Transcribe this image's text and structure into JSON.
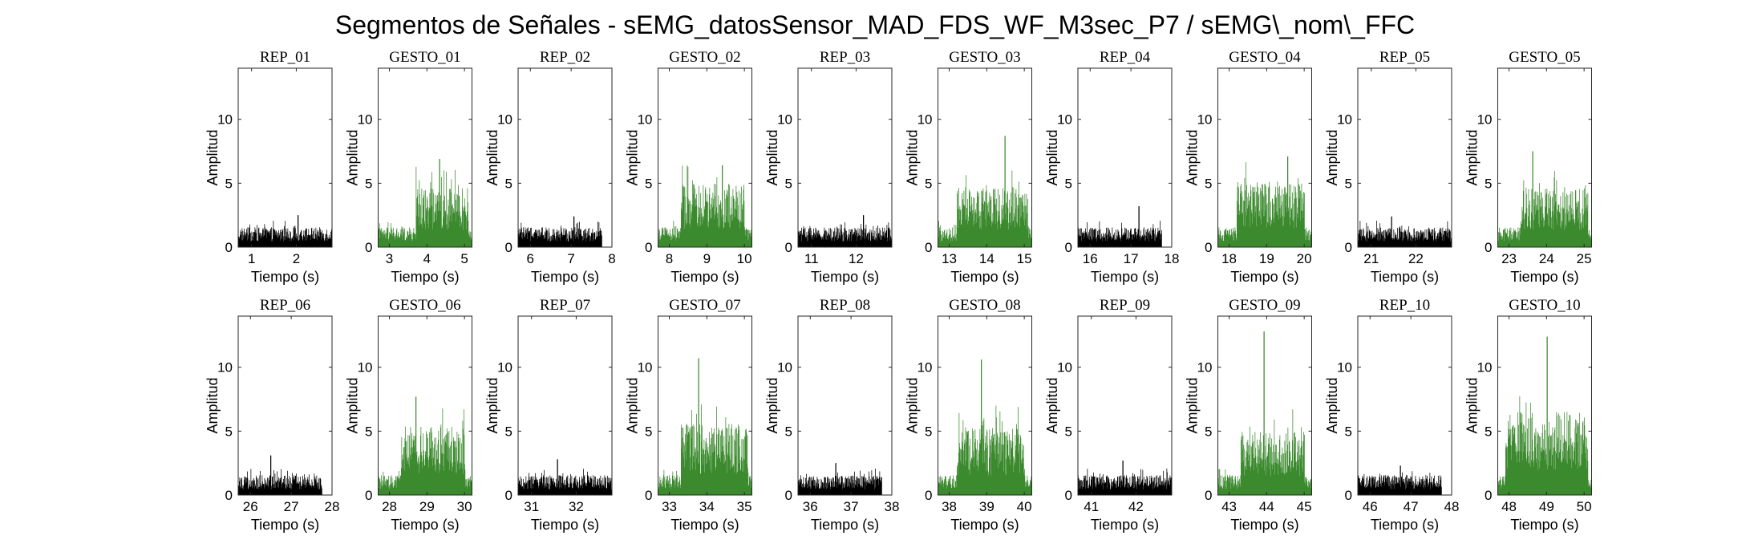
{
  "figure": {
    "suptitle": "Segmentos de Señales - sEMG_datosSensor_MAD_FDS_WF_M3sec_P7 / sEMG\\_nom\\_FFC",
    "colors": {
      "rep": "#000000",
      "gesto": "#3b8a2e"
    }
  },
  "chart_data": [
    {
      "type": "bar",
      "title": "REP_01",
      "kind": "rep",
      "xlabel": "Tiempo (s)",
      "ylabel": "Amplitud",
      "xlim": [
        0.7,
        2.8
      ],
      "ylim": [
        0,
        14
      ],
      "x_ticks": [
        1,
        2
      ],
      "y_ticks": [
        0,
        5,
        10
      ],
      "data_range": [
        0.7,
        2.8
      ],
      "mean_level": 1.0,
      "peak": 2.5,
      "active": null
    },
    {
      "type": "bar",
      "title": "GESTO_01",
      "kind": "gesto",
      "xlabel": "Tiempo (s)",
      "ylabel": "Amplitud",
      "xlim": [
        2.7,
        5.2
      ],
      "ylim": [
        0,
        14
      ],
      "x_ticks": [
        3,
        4,
        5
      ],
      "y_ticks": [
        0,
        5,
        10
      ],
      "data_range": [
        2.7,
        5.2
      ],
      "mean_level": 3.0,
      "peak": 6.9,
      "active": [
        3.7,
        5.1
      ]
    },
    {
      "type": "bar",
      "title": "REP_02",
      "kind": "rep",
      "xlabel": "Tiempo (s)",
      "ylabel": "Amplitud",
      "xlim": [
        5.7,
        8.0
      ],
      "ylim": [
        0,
        14
      ],
      "x_ticks": [
        6,
        7,
        8
      ],
      "y_ticks": [
        0,
        5,
        10
      ],
      "data_range": [
        5.7,
        7.75
      ],
      "mean_level": 1.0,
      "peak": 2.4,
      "active": null
    },
    {
      "type": "bar",
      "title": "GESTO_02",
      "kind": "gesto",
      "xlabel": "Tiempo (s)",
      "ylabel": "Amplitud",
      "xlim": [
        7.7,
        10.2
      ],
      "ylim": [
        0,
        14
      ],
      "x_ticks": [
        8,
        9,
        10
      ],
      "y_ticks": [
        0,
        5,
        10
      ],
      "data_range": [
        7.7,
        10.2
      ],
      "mean_level": 3.2,
      "peak": 6.4,
      "active": [
        8.3,
        10.0
      ]
    },
    {
      "type": "bar",
      "title": "REP_03",
      "kind": "rep",
      "xlabel": "Tiempo (s)",
      "ylabel": "Amplitud",
      "xlim": [
        10.7,
        12.8
      ],
      "ylim": [
        0,
        14
      ],
      "x_ticks": [
        11,
        12
      ],
      "y_ticks": [
        0,
        5,
        10
      ],
      "data_range": [
        10.7,
        12.8
      ],
      "mean_level": 1.0,
      "peak": 2.5,
      "active": null
    },
    {
      "type": "bar",
      "title": "GESTO_03",
      "kind": "gesto",
      "xlabel": "Tiempo (s)",
      "ylabel": "Amplitud",
      "xlim": [
        12.7,
        15.2
      ],
      "ylim": [
        0,
        14
      ],
      "x_ticks": [
        13,
        14,
        15
      ],
      "y_ticks": [
        0,
        5,
        10
      ],
      "data_range": [
        12.7,
        15.2
      ],
      "mean_level": 3.0,
      "peak": 8.7,
      "active": [
        13.2,
        15.1
      ]
    },
    {
      "type": "bar",
      "title": "REP_04",
      "kind": "rep",
      "xlabel": "Tiempo (s)",
      "ylabel": "Amplitud",
      "xlim": [
        15.7,
        18.0
      ],
      "ylim": [
        0,
        14
      ],
      "x_ticks": [
        16,
        17,
        18
      ],
      "y_ticks": [
        0,
        5,
        10
      ],
      "data_range": [
        15.7,
        17.75
      ],
      "mean_level": 1.0,
      "peak": 3.2,
      "active": null
    },
    {
      "type": "bar",
      "title": "GESTO_04",
      "kind": "gesto",
      "xlabel": "Tiempo (s)",
      "ylabel": "Amplitud",
      "xlim": [
        17.7,
        20.2
      ],
      "ylim": [
        0,
        14
      ],
      "x_ticks": [
        18,
        19,
        20
      ],
      "y_ticks": [
        0,
        5,
        10
      ],
      "data_range": [
        17.7,
        20.2
      ],
      "mean_level": 3.3,
      "peak": 7.1,
      "active": [
        18.2,
        20.0
      ]
    },
    {
      "type": "bar",
      "title": "REP_05",
      "kind": "rep",
      "xlabel": "Tiempo (s)",
      "ylabel": "Amplitud",
      "xlim": [
        20.7,
        22.8
      ],
      "ylim": [
        0,
        14
      ],
      "x_ticks": [
        21,
        22
      ],
      "y_ticks": [
        0,
        5,
        10
      ],
      "data_range": [
        20.7,
        22.8
      ],
      "mean_level": 1.0,
      "peak": 2.4,
      "active": null
    },
    {
      "type": "bar",
      "title": "GESTO_05",
      "kind": "gesto",
      "xlabel": "Tiempo (s)",
      "ylabel": "Amplitud",
      "xlim": [
        22.7,
        25.2
      ],
      "ylim": [
        0,
        14
      ],
      "x_ticks": [
        23,
        24,
        25
      ],
      "y_ticks": [
        0,
        5,
        10
      ],
      "data_range": [
        22.7,
        25.2
      ],
      "mean_level": 3.0,
      "peak": 7.5,
      "active": [
        23.3,
        25.1
      ]
    },
    {
      "type": "bar",
      "title": "REP_06",
      "kind": "rep",
      "xlabel": "Tiempo (s)",
      "ylabel": "Amplitud",
      "xlim": [
        25.7,
        28.0
      ],
      "ylim": [
        0,
        14
      ],
      "x_ticks": [
        26,
        27,
        28
      ],
      "y_ticks": [
        0,
        5,
        10
      ],
      "data_range": [
        25.7,
        27.75
      ],
      "mean_level": 1.0,
      "peak": 3.1,
      "active": null
    },
    {
      "type": "bar",
      "title": "GESTO_06",
      "kind": "gesto",
      "xlabel": "Tiempo (s)",
      "ylabel": "Amplitud",
      "xlim": [
        27.7,
        30.2
      ],
      "ylim": [
        0,
        14
      ],
      "x_ticks": [
        28,
        29,
        30
      ],
      "y_ticks": [
        0,
        5,
        10
      ],
      "data_range": [
        27.7,
        30.2
      ],
      "mean_level": 3.5,
      "peak": 7.7,
      "active": [
        28.3,
        30.0
      ]
    },
    {
      "type": "bar",
      "title": "REP_07",
      "kind": "rep",
      "xlabel": "Tiempo (s)",
      "ylabel": "Amplitud",
      "xlim": [
        30.7,
        32.8
      ],
      "ylim": [
        0,
        14
      ],
      "x_ticks": [
        31,
        32
      ],
      "y_ticks": [
        0,
        5,
        10
      ],
      "data_range": [
        30.7,
        32.8
      ],
      "mean_level": 1.0,
      "peak": 2.8,
      "active": null
    },
    {
      "type": "bar",
      "title": "GESTO_07",
      "kind": "gesto",
      "xlabel": "Tiempo (s)",
      "ylabel": "Amplitud",
      "xlim": [
        32.7,
        35.2
      ],
      "ylim": [
        0,
        14
      ],
      "x_ticks": [
        33,
        34,
        35
      ],
      "y_ticks": [
        0,
        5,
        10
      ],
      "data_range": [
        32.7,
        35.2
      ],
      "mean_level": 3.6,
      "peak": 10.7,
      "active": [
        33.3,
        35.1
      ]
    },
    {
      "type": "bar",
      "title": "REP_08",
      "kind": "rep",
      "xlabel": "Tiempo (s)",
      "ylabel": "Amplitud",
      "xlim": [
        35.7,
        38.0
      ],
      "ylim": [
        0,
        14
      ],
      "x_ticks": [
        36,
        37,
        38
      ],
      "y_ticks": [
        0,
        5,
        10
      ],
      "data_range": [
        35.7,
        37.75
      ],
      "mean_level": 1.0,
      "peak": 2.5,
      "active": null
    },
    {
      "type": "bar",
      "title": "GESTO_08",
      "kind": "gesto",
      "xlabel": "Tiempo (s)",
      "ylabel": "Amplitud",
      "xlim": [
        37.7,
        40.2
      ],
      "ylim": [
        0,
        14
      ],
      "x_ticks": [
        38,
        39,
        40
      ],
      "y_ticks": [
        0,
        5,
        10
      ],
      "data_range": [
        37.7,
        40.2
      ],
      "mean_level": 3.4,
      "peak": 10.6,
      "active": [
        38.2,
        40.0
      ]
    },
    {
      "type": "bar",
      "title": "REP_09",
      "kind": "rep",
      "xlabel": "Tiempo (s)",
      "ylabel": "Amplitud",
      "xlim": [
        40.7,
        42.8
      ],
      "ylim": [
        0,
        14
      ],
      "x_ticks": [
        41,
        42
      ],
      "y_ticks": [
        0,
        5,
        10
      ],
      "data_range": [
        40.7,
        42.8
      ],
      "mean_level": 1.0,
      "peak": 2.7,
      "active": null
    },
    {
      "type": "bar",
      "title": "GESTO_09",
      "kind": "gesto",
      "xlabel": "Tiempo (s)",
      "ylabel": "Amplitud",
      "xlim": [
        42.7,
        45.2
      ],
      "ylim": [
        0,
        14
      ],
      "x_ticks": [
        43,
        44,
        45
      ],
      "y_ticks": [
        0,
        5,
        10
      ],
      "data_range": [
        42.7,
        45.2
      ],
      "mean_level": 3.2,
      "peak": 12.8,
      "active": [
        43.3,
        45.0
      ]
    },
    {
      "type": "bar",
      "title": "REP_10",
      "kind": "rep",
      "xlabel": "Tiempo (s)",
      "ylabel": "Amplitud",
      "xlim": [
        45.7,
        48.0
      ],
      "ylim": [
        0,
        14
      ],
      "x_ticks": [
        46,
        47,
        48
      ],
      "y_ticks": [
        0,
        5,
        10
      ],
      "data_range": [
        45.7,
        47.75
      ],
      "mean_level": 1.0,
      "peak": 2.3,
      "active": null
    },
    {
      "type": "bar",
      "title": "GESTO_10",
      "kind": "gesto",
      "xlabel": "Tiempo (s)",
      "ylabel": "Amplitud",
      "xlim": [
        47.7,
        50.2
      ],
      "ylim": [
        0,
        14
      ],
      "x_ticks": [
        48,
        49,
        50
      ],
      "y_ticks": [
        0,
        5,
        10
      ],
      "data_range": [
        47.7,
        50.2
      ],
      "mean_level": 4.2,
      "peak": 12.4,
      "active": [
        47.9,
        50.1
      ]
    }
  ]
}
